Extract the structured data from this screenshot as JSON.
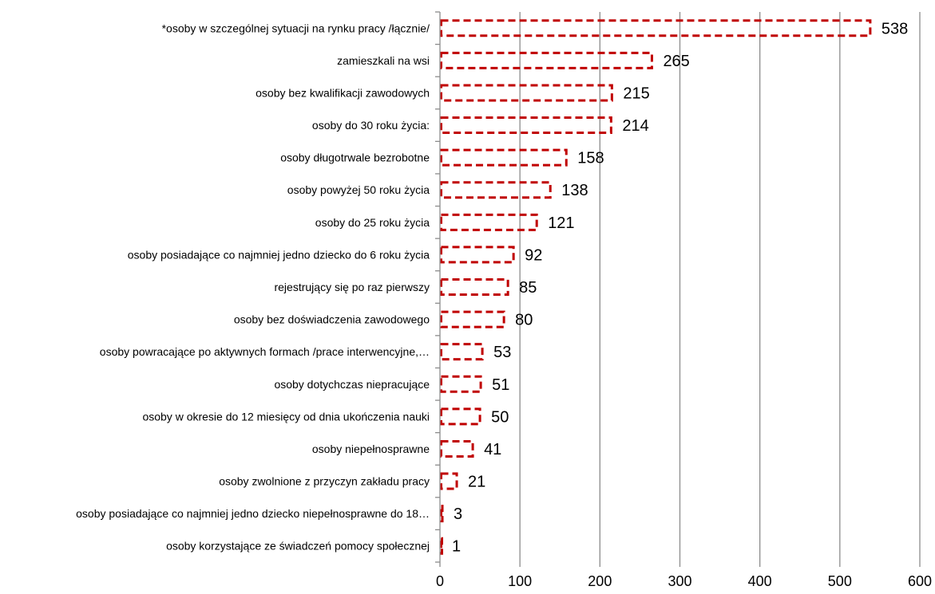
{
  "chart_data": {
    "type": "bar",
    "orientation": "horizontal",
    "categories": [
      "*osoby w szczególnej sytuacji na rynku pracy /łącznie/",
      "zamieszkali na wsi",
      "osoby bez kwalifikacji zawodowych",
      "osoby do 30 roku życia:",
      "osoby długotrwale bezrobotne",
      "osoby powyżej 50 roku życia",
      "osoby do 25 roku życia",
      "osoby posiadające co najmniej jedno dziecko do 6 roku życia",
      "rejestrujący się po raz pierwszy",
      "osoby bez doświadczenia zawodowego",
      "osoby powracające po aktywnych formach /prace interwencyjne,…",
      "osoby dotychczas niepracujące",
      "osoby w okresie do 12 miesięcy od dnia ukończenia nauki",
      "osoby niepełnosprawne",
      "osoby zwolnione z przyczyn zakładu pracy",
      "osoby posiadające co najmniej jedno dziecko niepełnosprawne do 18…",
      "osoby korzystające ze świadczeń pomocy społecznej"
    ],
    "values": [
      538,
      265,
      215,
      214,
      158,
      138,
      121,
      92,
      85,
      80,
      53,
      51,
      50,
      41,
      21,
      3,
      1
    ],
    "value_labels": [
      "538",
      "265",
      "215",
      "214",
      "158",
      "138",
      "121",
      "92",
      "85",
      "80",
      "53",
      "51",
      "50",
      "41",
      "21",
      "3",
      "1"
    ],
    "xlim": [
      0,
      600
    ],
    "x_ticks": [
      0,
      100,
      200,
      300,
      400,
      500,
      600
    ],
    "x_tick_labels": [
      "0",
      "100",
      "200",
      "300",
      "400",
      "500",
      "600"
    ],
    "grid": true,
    "bar_style": "dashed-outline",
    "colors": {
      "bar_outline": "#c00000",
      "grid": "#8c8c8c",
      "axis": "#8c8c8c",
      "text": "#000000"
    }
  }
}
